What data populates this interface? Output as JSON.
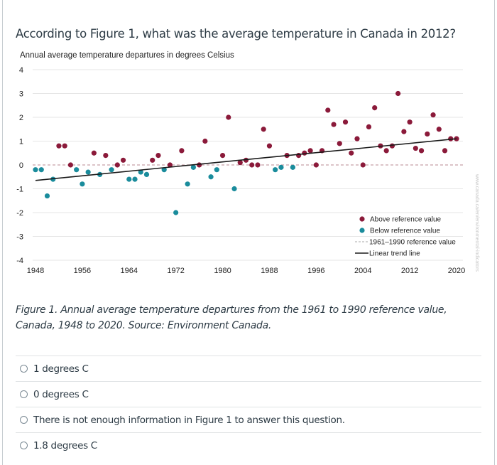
{
  "question": {
    "text": "According to Figure 1, what was the average temperature in Canada in 2012?"
  },
  "caption": "Figure 1. Annual average temperature departures from the 1961 to 1990 reference value, Canada, 1948 to 2020. Source: Environment Canada.",
  "watermark": "www.canada.ca/en/environmental-indicators",
  "options": [
    {
      "label": "1 degrees C",
      "selected": false
    },
    {
      "label": "0 degrees C",
      "selected": false
    },
    {
      "label": "There is not enough information in Figure 1 to answer this question.",
      "selected": false
    },
    {
      "label": "1.8 degrees C",
      "selected": false
    }
  ],
  "chart_data": {
    "type": "scatter",
    "title": "Annual average temperature departures in degrees Celsius",
    "xlabel": "",
    "ylabel": "",
    "xlim": [
      1948,
      2020
    ],
    "ylim": [
      -4,
      4
    ],
    "x_ticks": [
      1948,
      1956,
      1964,
      1972,
      1980,
      1988,
      1996,
      2004,
      2012,
      2020
    ],
    "y_ticks": [
      4,
      3,
      2,
      1,
      0,
      -1,
      -2,
      -3,
      -4
    ],
    "grid": true,
    "legend_position": "bottom-right",
    "colors": {
      "above": "#8b1a3a",
      "below": "#1a8c9c",
      "reference": "#c8a0a8",
      "trend": "#1a1a1a"
    },
    "legend": [
      {
        "key": "above",
        "label": "Above reference value",
        "kind": "dot"
      },
      {
        "key": "below",
        "label": "Below reference value",
        "kind": "dot"
      },
      {
        "key": "reference",
        "label": "1961–1990 reference value",
        "kind": "dashed"
      },
      {
        "key": "trend",
        "label": "Linear trend line",
        "kind": "line"
      }
    ],
    "reference_value": 0,
    "trend_line": {
      "start": [
        1948,
        -0.65
      ],
      "end": [
        2020,
        1.1
      ]
    },
    "years": [
      1948,
      1949,
      1950,
      1951,
      1952,
      1953,
      1954,
      1955,
      1956,
      1957,
      1958,
      1959,
      1960,
      1961,
      1962,
      1963,
      1964,
      1965,
      1966,
      1967,
      1968,
      1969,
      1970,
      1971,
      1972,
      1973,
      1974,
      1975,
      1976,
      1977,
      1978,
      1979,
      1980,
      1981,
      1982,
      1983,
      1984,
      1985,
      1986,
      1987,
      1988,
      1989,
      1990,
      1991,
      1992,
      1993,
      1994,
      1995,
      1996,
      1997,
      1998,
      1999,
      2000,
      2001,
      2002,
      2003,
      2004,
      2005,
      2006,
      2007,
      2008,
      2009,
      2010,
      2011,
      2012,
      2013,
      2014,
      2015,
      2016,
      2017,
      2018,
      2019,
      2020
    ],
    "values": [
      -0.2,
      -0.2,
      -1.3,
      -0.6,
      0.8,
      0.8,
      0.0,
      -0.2,
      -0.8,
      -0.3,
      0.5,
      -0.4,
      0.4,
      -0.2,
      0.0,
      0.2,
      -0.6,
      -0.6,
      -0.3,
      -0.4,
      0.2,
      0.4,
      -0.2,
      0.0,
      -2.0,
      0.6,
      -0.8,
      -0.1,
      0.0,
      1.0,
      -0.5,
      -0.2,
      0.4,
      2.0,
      -1.0,
      0.1,
      0.2,
      0.0,
      0.0,
      1.5,
      0.8,
      -0.2,
      -0.1,
      0.4,
      -0.1,
      0.4,
      0.5,
      0.6,
      0.0,
      0.6,
      2.3,
      1.7,
      0.9,
      1.8,
      0.5,
      1.1,
      0.0,
      1.6,
      2.4,
      0.8,
      0.6,
      0.8,
      3.0,
      1.4,
      1.8,
      0.7,
      0.6,
      1.3,
      2.1,
      1.5,
      0.6,
      1.1,
      1.1
    ]
  }
}
